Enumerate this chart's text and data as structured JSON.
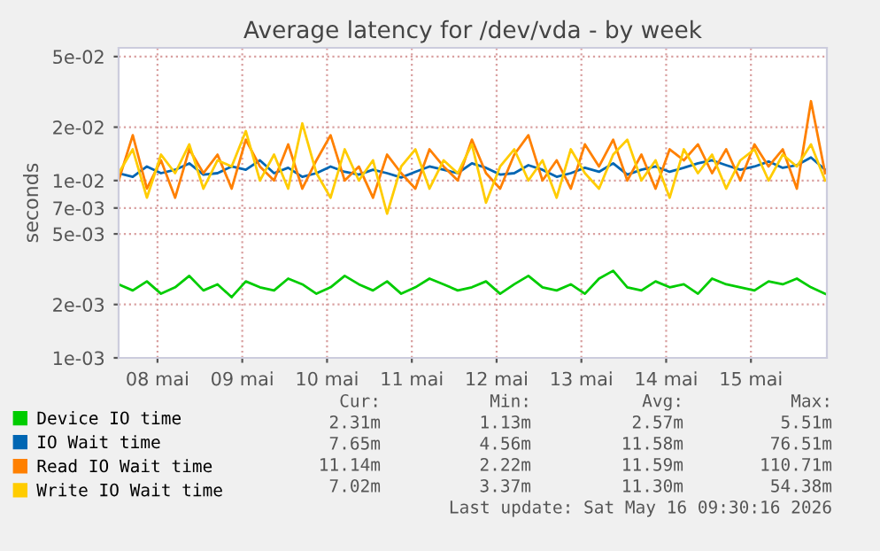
{
  "chart_data": {
    "type": "line",
    "title": "Average latency for /dev/vda - by week",
    "ylabel": "seconds",
    "x": [
      "2026-05-08T01:00",
      "2026-05-08T05:00",
      "2026-05-08T09:00",
      "2026-05-08T13:00",
      "2026-05-08T17:00",
      "2026-05-08T21:00",
      "2026-05-09T01:00",
      "2026-05-09T05:00",
      "2026-05-09T09:00",
      "2026-05-09T13:00",
      "2026-05-09T17:00",
      "2026-05-09T21:00",
      "2026-05-10T01:00",
      "2026-05-10T05:00",
      "2026-05-10T09:00",
      "2026-05-10T13:00",
      "2026-05-10T17:00",
      "2026-05-10T21:00",
      "2026-05-11T01:00",
      "2026-05-11T05:00",
      "2026-05-11T09:00",
      "2026-05-11T13:00",
      "2026-05-11T17:00",
      "2026-05-11T21:00",
      "2026-05-12T01:00",
      "2026-05-12T05:00",
      "2026-05-12T09:00",
      "2026-05-12T13:00",
      "2026-05-12T17:00",
      "2026-05-12T21:00",
      "2026-05-13T01:00",
      "2026-05-13T05:00",
      "2026-05-13T09:00",
      "2026-05-13T13:00",
      "2026-05-13T17:00",
      "2026-05-13T21:00",
      "2026-05-14T01:00",
      "2026-05-14T05:00",
      "2026-05-14T09:00",
      "2026-05-14T13:00",
      "2026-05-14T17:00",
      "2026-05-14T21:00",
      "2026-05-15T01:00",
      "2026-05-15T05:00",
      "2026-05-15T09:00",
      "2026-05-15T13:00",
      "2026-05-15T17:00",
      "2026-05-15T21:00",
      "2026-05-16T01:00",
      "2026-05-16T05:00",
      "2026-05-16T09:00"
    ],
    "series": [
      {
        "name": "Device IO time",
        "color": "#00cc00",
        "values": [
          0.0026,
          0.0024,
          0.0027,
          0.0023,
          0.0025,
          0.0029,
          0.0024,
          0.0026,
          0.0022,
          0.0027,
          0.0025,
          0.0024,
          0.0028,
          0.0026,
          0.0023,
          0.0025,
          0.0029,
          0.0026,
          0.0024,
          0.0027,
          0.0023,
          0.0025,
          0.0028,
          0.0026,
          0.0024,
          0.0025,
          0.0027,
          0.0023,
          0.0026,
          0.0029,
          0.0025,
          0.0024,
          0.0026,
          0.0023,
          0.0028,
          0.0031,
          0.0025,
          0.0024,
          0.0027,
          0.0025,
          0.0026,
          0.0023,
          0.0028,
          0.0026,
          0.0025,
          0.0024,
          0.0027,
          0.0026,
          0.0028,
          0.0025,
          0.0023
        ]
      },
      {
        "name": "IO Wait time",
        "color": "#0066b3",
        "values": [
          0.011,
          0.0105,
          0.012,
          0.011,
          0.0115,
          0.0125,
          0.0108,
          0.011,
          0.012,
          0.0115,
          0.013,
          0.011,
          0.0118,
          0.0105,
          0.011,
          0.012,
          0.0112,
          0.0108,
          0.0115,
          0.011,
          0.0104,
          0.0112,
          0.012,
          0.0115,
          0.011,
          0.0125,
          0.0118,
          0.0108,
          0.011,
          0.0122,
          0.0115,
          0.0105,
          0.011,
          0.0118,
          0.0112,
          0.0125,
          0.0108,
          0.0115,
          0.012,
          0.0112,
          0.0118,
          0.0125,
          0.013,
          0.0122,
          0.0115,
          0.012,
          0.0128,
          0.0118,
          0.0122,
          0.0135,
          0.0115
        ]
      },
      {
        "name": "Read IO Wait time",
        "color": "#ff8000",
        "values": [
          0.01,
          0.018,
          0.009,
          0.013,
          0.008,
          0.015,
          0.011,
          0.014,
          0.009,
          0.017,
          0.012,
          0.01,
          0.016,
          0.009,
          0.013,
          0.018,
          0.01,
          0.012,
          0.008,
          0.014,
          0.011,
          0.009,
          0.015,
          0.012,
          0.01,
          0.017,
          0.011,
          0.009,
          0.014,
          0.018,
          0.01,
          0.013,
          0.009,
          0.016,
          0.012,
          0.017,
          0.01,
          0.014,
          0.009,
          0.015,
          0.013,
          0.016,
          0.011,
          0.015,
          0.01,
          0.016,
          0.012,
          0.015,
          0.009,
          0.028,
          0.011
        ]
      },
      {
        "name": "Write IO Wait time",
        "color": "#ffcc00",
        "values": [
          0.011,
          0.015,
          0.008,
          0.014,
          0.011,
          0.016,
          0.009,
          0.013,
          0.012,
          0.019,
          0.01,
          0.014,
          0.009,
          0.021,
          0.011,
          0.008,
          0.015,
          0.01,
          0.013,
          0.0065,
          0.012,
          0.015,
          0.009,
          0.013,
          0.011,
          0.016,
          0.0075,
          0.012,
          0.015,
          0.01,
          0.013,
          0.008,
          0.015,
          0.011,
          0.009,
          0.014,
          0.017,
          0.01,
          0.013,
          0.008,
          0.015,
          0.011,
          0.014,
          0.009,
          0.013,
          0.015,
          0.01,
          0.014,
          0.012,
          0.016,
          0.01
        ]
      }
    ],
    "log": true,
    "ylim": [
      0.001,
      0.056
    ],
    "yticks": [
      {
        "value": 0.001,
        "label": "1e-03"
      },
      {
        "value": 0.002,
        "label": "2e-03"
      },
      {
        "value": 0.005,
        "label": "5e-03"
      },
      {
        "value": 0.007,
        "label": "7e-03"
      },
      {
        "value": 0.01,
        "label": "1e-02"
      },
      {
        "value": 0.02,
        "label": "2e-02"
      },
      {
        "value": 0.05,
        "label": "5e-02"
      }
    ],
    "xlim": [
      "2026-05-08T01:00",
      "2026-05-16T09:30"
    ],
    "xticks": [
      {
        "value": "2026-05-08T12:00",
        "label": "08 mai"
      },
      {
        "value": "2026-05-09T12:00",
        "label": "09 mai"
      },
      {
        "value": "2026-05-10T12:00",
        "label": "10 mai"
      },
      {
        "value": "2026-05-11T12:00",
        "label": "11 mai"
      },
      {
        "value": "2026-05-12T12:00",
        "label": "12 mai"
      },
      {
        "value": "2026-05-13T12:00",
        "label": "13 mai"
      },
      {
        "value": "2026-05-14T12:00",
        "label": "14 mai"
      },
      {
        "value": "2026-05-15T12:00",
        "label": "15 mai"
      }
    ],
    "grid": true,
    "legend": "bottom",
    "annotations": [
      "Cur:",
      "Min:",
      "Avg:",
      "Max:",
      "2.31m",
      "1.13m",
      "2.57m",
      "5.51m",
      "7.65m",
      "4.56m",
      "11.58m",
      "76.51m",
      "11.14m",
      "2.22m",
      "11.59m",
      "110.71m",
      "7.02m",
      "3.37m",
      "11.30m",
      "54.38m",
      "Last update: Sat May 16 09:30:16 2026"
    ]
  }
}
